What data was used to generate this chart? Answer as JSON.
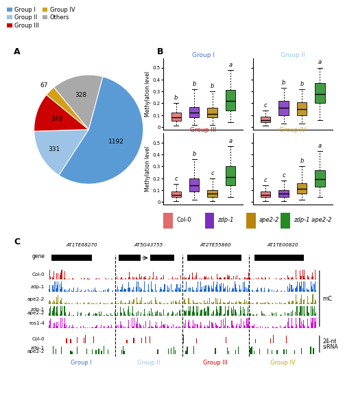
{
  "pie": {
    "values": [
      1192,
      331,
      248,
      67,
      328
    ],
    "labels": [
      "Group I",
      "Group II",
      "Group III",
      "Group IV",
      "Others"
    ],
    "colors": [
      "#5B9BD5",
      "#9DC3E6",
      "#CC0000",
      "#D4A017",
      "#A9A9A9"
    ],
    "startangle": 75
  },
  "legend_pie": {
    "labels": [
      "Group I",
      "Group II",
      "Group III",
      "Group IV",
      "Others"
    ],
    "colors": [
      "#5B9BD5",
      "#9DC3E6",
      "#CC0000",
      "#D4A017",
      "#A9A9A9"
    ]
  },
  "boxplot": {
    "groups": [
      "Group I",
      "Group II",
      "Group III",
      "Group IV"
    ],
    "group_title_colors": [
      "#4472C4",
      "#9DC3E6",
      "#CC0000",
      "#D4A017"
    ],
    "box_colors": [
      "#E06C6C",
      "#7B2FBE",
      "#B8860B",
      "#228B22"
    ],
    "letters": [
      [
        "b",
        "b",
        "b",
        "a"
      ],
      [
        "c",
        "b",
        "b",
        "a"
      ],
      [
        "c",
        "b",
        "c",
        "a"
      ],
      [
        "c",
        "c",
        "b",
        "a"
      ]
    ],
    "data": {
      "Group I": {
        "Col-0": {
          "q1": 0.05,
          "median": 0.08,
          "q3": 0.12,
          "whislo": 0.01,
          "whishi": 0.2
        },
        "zdp-1": {
          "q1": 0.08,
          "median": 0.12,
          "q3": 0.17,
          "whislo": 0.02,
          "whishi": 0.32
        },
        "ape2-2": {
          "q1": 0.08,
          "median": 0.11,
          "q3": 0.16,
          "whislo": 0.02,
          "whishi": 0.3
        },
        "zdp-1 ape2-2": {
          "q1": 0.14,
          "median": 0.22,
          "q3": 0.31,
          "whislo": 0.04,
          "whishi": 0.48
        }
      },
      "Group II": {
        "Col-0": {
          "q1": 0.04,
          "median": 0.06,
          "q3": 0.09,
          "whislo": 0.01,
          "whishi": 0.14
        },
        "zdp-1": {
          "q1": 0.1,
          "median": 0.16,
          "q3": 0.22,
          "whislo": 0.03,
          "whishi": 0.33
        },
        "ape2-2": {
          "q1": 0.1,
          "median": 0.15,
          "q3": 0.21,
          "whislo": 0.03,
          "whishi": 0.32
        },
        "zdp-1 ape2-2": {
          "q1": 0.2,
          "median": 0.28,
          "q3": 0.37,
          "whislo": 0.06,
          "whishi": 0.5
        }
      },
      "Group III": {
        "Col-0": {
          "q1": 0.04,
          "median": 0.06,
          "q3": 0.09,
          "whislo": 0.01,
          "whishi": 0.15
        },
        "zdp-1": {
          "q1": 0.09,
          "median": 0.14,
          "q3": 0.2,
          "whislo": 0.02,
          "whishi": 0.36
        },
        "ape2-2": {
          "q1": 0.04,
          "median": 0.07,
          "q3": 0.1,
          "whislo": 0.01,
          "whishi": 0.2
        },
        "zdp-1 ape2-2": {
          "q1": 0.14,
          "median": 0.21,
          "q3": 0.3,
          "whislo": 0.04,
          "whishi": 0.47
        }
      },
      "Group IV": {
        "Col-0": {
          "q1": 0.04,
          "median": 0.06,
          "q3": 0.09,
          "whislo": 0.01,
          "whishi": 0.14
        },
        "zdp-1": {
          "q1": 0.04,
          "median": 0.07,
          "q3": 0.1,
          "whislo": 0.01,
          "whishi": 0.18
        },
        "ape2-2": {
          "q1": 0.07,
          "median": 0.11,
          "q3": 0.16,
          "whislo": 0.02,
          "whishi": 0.3
        },
        "zdp-1 ape2-2": {
          "q1": 0.13,
          "median": 0.19,
          "q3": 0.27,
          "whislo": 0.04,
          "whishi": 0.43
        }
      }
    }
  },
  "track_panel": {
    "gene_names": [
      "AT1TE68270",
      "AT5G43755",
      "AT2TE55860",
      "AT1TE00820"
    ],
    "group_labels": [
      "Group I",
      "Group II",
      "Group III",
      "Group IV"
    ],
    "group_label_colors": [
      "#4472C4",
      "#9DC3E6",
      "#CC0000",
      "#D4A017"
    ],
    "track_labels": [
      "Col-0",
      "zdp-1",
      "ape2-2",
      "zdp-1\nape2-2",
      "ros1-4"
    ],
    "track_colors": [
      "#CC0000",
      "#0055CC",
      "#808000",
      "#006400",
      "#CC00CC"
    ],
    "sirna_track_labels": [
      "Col-0",
      "zdp-1\nape2-2"
    ],
    "sirna_colors": [
      "#CC0000",
      "#006400"
    ]
  },
  "legend_box": {
    "labels": [
      "Col-0",
      "zdp-1",
      "ape2-2",
      "zdp-1 ape2-2"
    ],
    "colors": [
      "#E06C6C",
      "#7B2FBE",
      "#B8860B",
      "#228B22"
    ]
  }
}
